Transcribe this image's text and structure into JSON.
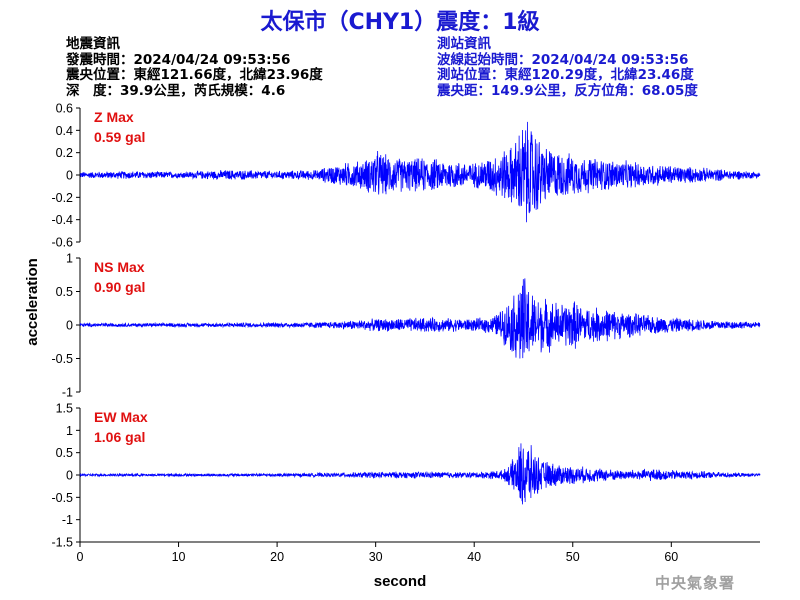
{
  "title": "太保市（CHY1）震度：1級",
  "quake_info": {
    "heading": "地震資訊",
    "origin_time": "發震時間：2024/04/24 09:53:56",
    "epicenter": "震央位置：東經121.66度，北緯23.96度",
    "depth_magnitude": "深　度：39.9公里，芮氏規模：4.6"
  },
  "station_info": {
    "heading": "測站資訊",
    "wave_start": "波線起始時間：2024/04/24 09:53:56",
    "station_location": "測站位置：東經120.29度，北緯23.46度",
    "distance_azimuth": "震央距：149.9公里，反方位角：68.05度"
  },
  "agency": "中央氣象署",
  "colors": {
    "title": "#1a1ad0",
    "trace": "#0000ff",
    "max_label": "#e01010",
    "station_text": "#1a1ad0"
  },
  "chart_data": {
    "type": "line",
    "xlabel": "second",
    "ylabel": "acceleration",
    "xlim": [
      0,
      69
    ],
    "x_ticks": [
      0,
      10,
      20,
      30,
      40,
      50,
      60
    ],
    "grid": false,
    "panels": [
      {
        "component": "Z",
        "max_label": "Z Max",
        "max_value": "0.59 gal",
        "ylim": [
          -0.6,
          0.6
        ],
        "y_ticks": [
          0.6,
          0.4,
          0.2,
          0,
          -0.2,
          -0.4,
          -0.6
        ],
        "envelope": [
          [
            0,
            0.03
          ],
          [
            5,
            0.04
          ],
          [
            10,
            0.03
          ],
          [
            15,
            0.05
          ],
          [
            20,
            0.04
          ],
          [
            24,
            0.05
          ],
          [
            25,
            0.08
          ],
          [
            27,
            0.12
          ],
          [
            29,
            0.15
          ],
          [
            30,
            0.25
          ],
          [
            31,
            0.2
          ],
          [
            33,
            0.16
          ],
          [
            35,
            0.17
          ],
          [
            37,
            0.15
          ],
          [
            40,
            0.12
          ],
          [
            42,
            0.2
          ],
          [
            44,
            0.3
          ],
          [
            45,
            0.55
          ],
          [
            46,
            0.48
          ],
          [
            47,
            0.3
          ],
          [
            48,
            0.25
          ],
          [
            50,
            0.2
          ],
          [
            52,
            0.17
          ],
          [
            55,
            0.14
          ],
          [
            58,
            0.11
          ],
          [
            62,
            0.08
          ],
          [
            66,
            0.05
          ],
          [
            69,
            0.03
          ]
        ]
      },
      {
        "component": "NS",
        "max_label": "NS Max",
        "max_value": "0.90 gal",
        "ylim": [
          -1,
          1
        ],
        "y_ticks": [
          1,
          0.5,
          0,
          -0.5,
          -1
        ],
        "envelope": [
          [
            0,
            0.03
          ],
          [
            10,
            0.03
          ],
          [
            20,
            0.04
          ],
          [
            25,
            0.05
          ],
          [
            27,
            0.07
          ],
          [
            30,
            0.1
          ],
          [
            35,
            0.12
          ],
          [
            40,
            0.1
          ],
          [
            42,
            0.15
          ],
          [
            43,
            0.3
          ],
          [
            44,
            0.5
          ],
          [
            45,
            0.85
          ],
          [
            46,
            0.5
          ],
          [
            47,
            0.45
          ],
          [
            48,
            0.4
          ],
          [
            49,
            0.35
          ],
          [
            50,
            0.42
          ],
          [
            51,
            0.3
          ],
          [
            53,
            0.28
          ],
          [
            55,
            0.22
          ],
          [
            58,
            0.15
          ],
          [
            62,
            0.1
          ],
          [
            66,
            0.07
          ],
          [
            69,
            0.04
          ]
        ]
      },
      {
        "component": "EW",
        "max_label": "EW Max",
        "max_value": "1.06 gal",
        "ylim": [
          -1.5,
          1.5
        ],
        "y_ticks": [
          1.5,
          1,
          0.5,
          0,
          -0.5,
          -1,
          -1.5
        ],
        "envelope": [
          [
            0,
            0.03
          ],
          [
            10,
            0.03
          ],
          [
            20,
            0.04
          ],
          [
            26,
            0.05
          ],
          [
            30,
            0.08
          ],
          [
            35,
            0.08
          ],
          [
            40,
            0.07
          ],
          [
            43,
            0.12
          ],
          [
            44,
            0.4
          ],
          [
            45,
            1.0
          ],
          [
            46,
            0.6
          ],
          [
            47,
            0.35
          ],
          [
            48,
            0.3
          ],
          [
            49,
            0.25
          ],
          [
            51,
            0.2
          ],
          [
            55,
            0.12
          ],
          [
            58,
            0.15
          ],
          [
            62,
            0.1
          ],
          [
            66,
            0.06
          ],
          [
            69,
            0.03
          ]
        ]
      }
    ]
  }
}
